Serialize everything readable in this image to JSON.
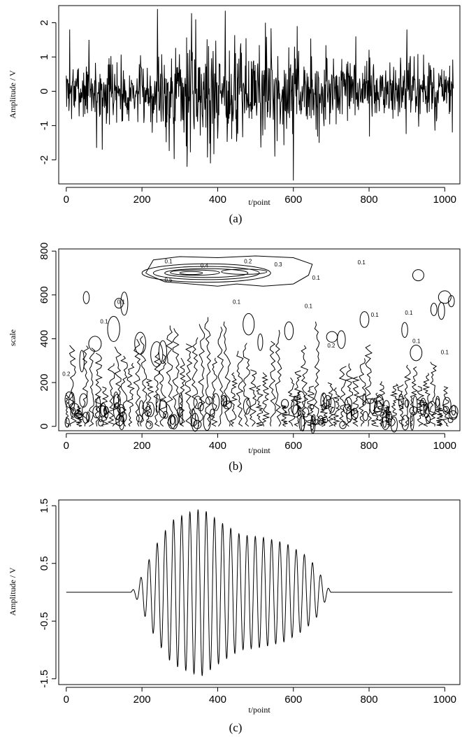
{
  "chart_data": [
    {
      "id": "a",
      "type": "line",
      "caption": "(a)",
      "xlabel": "t/point",
      "ylabel": "Amplitude / V",
      "xlim": [
        -20,
        1040
      ],
      "ylim": [
        -2.7,
        2.5
      ],
      "xticks": [
        0,
        200,
        400,
        600,
        800,
        1000
      ],
      "yticks": [
        -2,
        -1,
        0,
        1,
        2
      ],
      "series": [
        {
          "generator": "noise",
          "n_points": 1024,
          "seed": 7,
          "envelope": [
            [
              0,
              0.55
            ],
            [
              230,
              0.7
            ],
            [
              250,
              1.1
            ],
            [
              400,
              1.15
            ],
            [
              540,
              1.05
            ],
            [
              620,
              0.8
            ],
            [
              1024,
              0.6
            ]
          ],
          "spikes": [
            [
              9,
              1.8
            ],
            [
              60,
              1.5
            ],
            [
              80,
              -1.65
            ],
            [
              95,
              -1.7
            ],
            [
              241,
              2.4
            ],
            [
              319,
              -2.2
            ],
            [
              342,
              2.1
            ],
            [
              381,
              -2.1
            ],
            [
              420,
              2.35
            ],
            [
              526,
              2.0
            ],
            [
              551,
              -1.9
            ],
            [
              600,
              -2.6
            ],
            [
              610,
              1.9
            ],
            [
              668,
              -1.5
            ],
            [
              765,
              1.6
            ],
            [
              900,
              1.8
            ],
            [
              1020,
              -1.2
            ]
          ]
        }
      ]
    },
    {
      "id": "b",
      "type": "contour",
      "caption": "(b)",
      "xlabel": "t/point",
      "ylabel": "scale",
      "xlim": [
        -20,
        1040
      ],
      "ylim": [
        -20,
        810
      ],
      "xticks": [
        0,
        200,
        400,
        600,
        800,
        1000
      ],
      "yticks": [
        0,
        200,
        400,
        600,
        800
      ],
      "contour_labels": [
        {
          "text": "0.1",
          "x": 270,
          "y": 745
        },
        {
          "text": "0.2",
          "x": 480,
          "y": 745
        },
        {
          "text": "0.4",
          "x": 365,
          "y": 725
        },
        {
          "text": "0.3",
          "x": 560,
          "y": 730
        },
        {
          "text": "0.5",
          "x": 270,
          "y": 660
        },
        {
          "text": "0.1",
          "x": 450,
          "y": 560
        },
        {
          "text": "0.1",
          "x": 780,
          "y": 740
        },
        {
          "text": "0.1",
          "x": 660,
          "y": 670
        },
        {
          "text": "0.1",
          "x": 145,
          "y": 560
        },
        {
          "text": "0.1",
          "x": 640,
          "y": 540
        },
        {
          "text": "0.1",
          "x": 815,
          "y": 500
        },
        {
          "text": "0.1",
          "x": 905,
          "y": 510
        },
        {
          "text": "0.1",
          "x": 925,
          "y": 380
        },
        {
          "text": "0.1",
          "x": 1000,
          "y": 330
        },
        {
          "text": "0.1",
          "x": 100,
          "y": 470
        },
        {
          "text": "0.2",
          "x": 0,
          "y": 230
        },
        {
          "text": "0.2",
          "x": 700,
          "y": 360
        },
        {
          "text": "0.2",
          "x": 610,
          "y": 120
        }
      ]
    },
    {
      "id": "c",
      "type": "line",
      "caption": "(c)",
      "xlabel": "t/point",
      "ylabel": "Amplitude / V",
      "xlim": [
        -20,
        1040
      ],
      "ylim": [
        -1.6,
        1.6
      ],
      "xticks": [
        0,
        200,
        400,
        600,
        800,
        1000
      ],
      "yticks": [
        -1.5,
        -0.5,
        0.5,
        1.5
      ],
      "series": [
        {
          "generator": "wave_packet",
          "x_start": 0,
          "x_end": 1020,
          "packet_start": 170,
          "packet_end": 700,
          "period": 21.6,
          "envelope": [
            [
              170,
              0.0
            ],
            [
              190,
              0.15
            ],
            [
              210,
              0.45
            ],
            [
              240,
              0.85
            ],
            [
              280,
              1.25
            ],
            [
              330,
              1.4
            ],
            [
              360,
              1.45
            ],
            [
              400,
              1.25
            ],
            [
              460,
              1.0
            ],
            [
              520,
              0.95
            ],
            [
              580,
              0.85
            ],
            [
              630,
              0.65
            ],
            [
              660,
              0.45
            ],
            [
              680,
              0.2
            ],
            [
              700,
              0.0
            ]
          ]
        }
      ]
    }
  ]
}
